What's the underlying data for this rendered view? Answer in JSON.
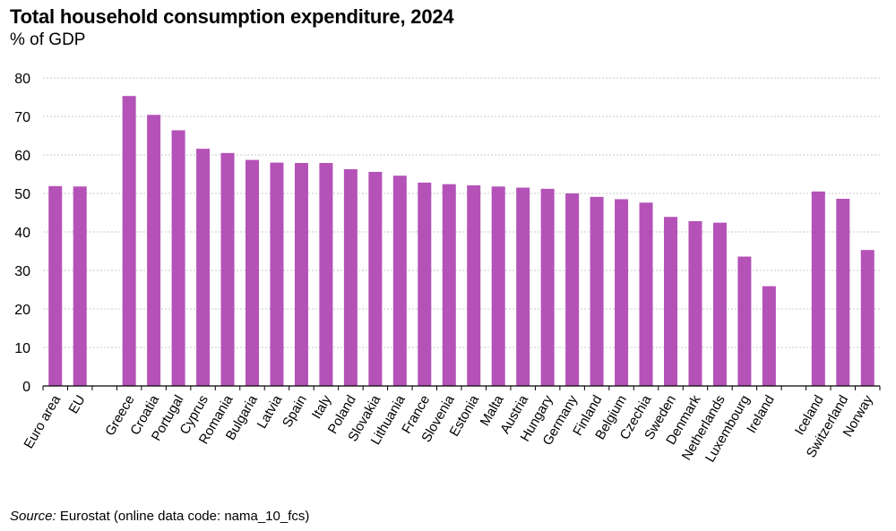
{
  "chart_data": {
    "type": "bar",
    "title": "Total household consumption expenditure, 2024",
    "subtitle": "% of GDP",
    "xlabel": "",
    "ylabel": "% of GDP",
    "ylim": [
      0,
      80
    ],
    "yticks": [
      0,
      10,
      20,
      30,
      40,
      50,
      60,
      70,
      80
    ],
    "grid": true,
    "legend": "none",
    "bar_color": "#b452b8",
    "categories": [
      "Euro area",
      "EU",
      "",
      "Greece",
      "Croatia",
      "Portugal",
      "Cyprus",
      "Romania",
      "Bulgaria",
      "Latvia",
      "Spain",
      "Italy",
      "Poland",
      "Slovakia",
      "Lithuania",
      "France",
      "Slovenia",
      "Estonia",
      "Malta",
      "Austria",
      "Hungary",
      "Germany",
      "Finland",
      "Belgium",
      "Czechia",
      "Sweden",
      "Denmark",
      "Netherlands",
      "Luxembourg",
      "Ireland",
      "",
      "Iceland",
      "Switzerland",
      "Norway"
    ],
    "values": [
      51.9,
      51.8,
      null,
      75.3,
      70.4,
      66.4,
      61.6,
      60.5,
      58.7,
      58.0,
      57.9,
      57.9,
      56.3,
      55.6,
      54.6,
      52.8,
      52.4,
      52.1,
      51.8,
      51.5,
      51.2,
      50.0,
      49.1,
      48.5,
      47.6,
      43.9,
      42.8,
      42.4,
      33.6,
      25.9,
      null,
      50.5,
      48.6,
      35.3
    ]
  },
  "source": {
    "label": "Source:",
    "text": " Eurostat (online data code: nama_10_fcs)"
  }
}
